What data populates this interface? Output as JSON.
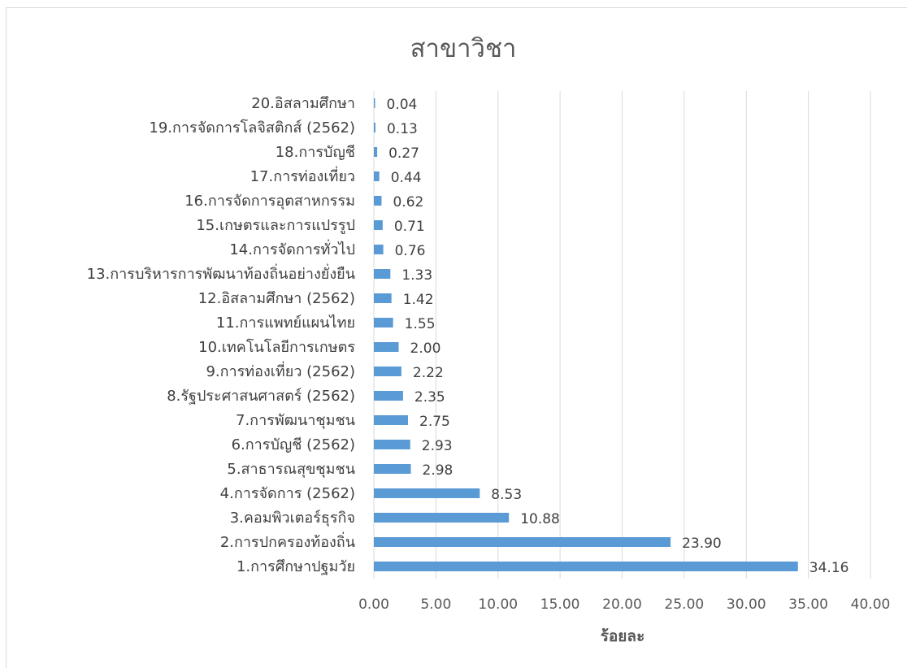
{
  "chart_data": {
    "type": "bar",
    "orientation": "horizontal",
    "title": "สาขาวิชา",
    "xlabel": "ร้อยละ",
    "ylabel": "",
    "xlim": [
      0,
      40
    ],
    "xticks": [
      "0.00",
      "5.00",
      "10.00",
      "15.00",
      "20.00",
      "25.00",
      "30.00",
      "35.00",
      "40.00"
    ],
    "grid": true,
    "legend": "none",
    "bar_color": "#5b9bd5",
    "categories": [
      "1.การศึกษาปฐมวัย",
      "2.การปกครองท้องถิ่น",
      "3.คอมพิวเตอร์ธุรกิจ",
      "4.การจัดการ (2562)",
      "5.สาธารณสุขชุมชน",
      "6.การบัญชี (2562)",
      "7.การพัฒนาชุมชน",
      "8.รัฐประศาสนศาสตร์ (2562)",
      "9.การท่องเที่ยว (2562)",
      "10.เทคโนโลยีการเกษตร",
      "11.การแพทย์แผนไทย",
      "12.อิสลามศึกษา (2562)",
      "13.การบริหารการพัฒนาท้องถิ่นอย่างยั่งยืน",
      "14.การจัดการทั่วไป",
      "15.เกษตรและการแปรรูป",
      "16.การจัดการอุตสาหกรรม",
      "17.การท่องเที่ยว",
      "18.การบัญชี",
      "19.การจัดการโลจิสติกส์ (2562)",
      "20.อิสลามศึกษา"
    ],
    "values": [
      34.16,
      23.9,
      10.88,
      8.53,
      2.98,
      2.93,
      2.75,
      2.35,
      2.22,
      2.0,
      1.55,
      1.42,
      1.33,
      0.76,
      0.71,
      0.62,
      0.44,
      0.27,
      0.13,
      0.04
    ],
    "data_labels": [
      "34.16",
      "23.90",
      "10.88",
      "8.53",
      "2.98",
      "2.93",
      "2.75",
      "2.35",
      "2.22",
      "2.00",
      "1.55",
      "1.42",
      "1.33",
      "0.76",
      "0.71",
      "0.62",
      "0.44",
      "0.27",
      "0.13",
      "0.04"
    ]
  }
}
